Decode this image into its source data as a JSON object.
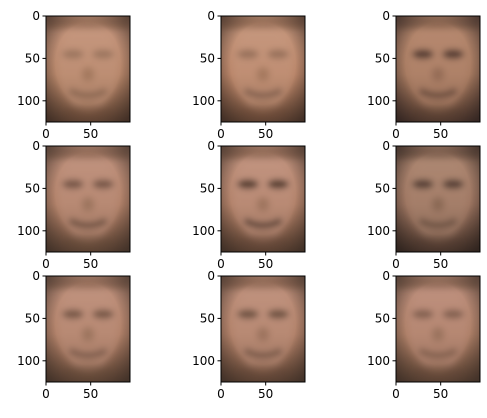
{
  "chart_data": [
    {
      "type": "heatmap",
      "title": "",
      "xlabel": "",
      "ylabel": "",
      "xlim": [
        0,
        94
      ],
      "ylim": [
        125,
        0
      ],
      "xticks": [
        0,
        50
      ],
      "yticks": [
        0,
        50,
        100
      ],
      "grid": false,
      "face": {
        "skin": "#b48468",
        "shade": "#7a5640",
        "eye": "#5c4234",
        "border": "#3a2a22",
        "highlight": "#c89880",
        "eye_strength": 0.35,
        "mouth_strength": 0.45,
        "brightness": 1.0
      }
    },
    {
      "type": "heatmap",
      "title": "",
      "xlabel": "",
      "ylabel": "",
      "xlim": [
        0,
        94
      ],
      "ylim": [
        125,
        0
      ],
      "xticks": [
        0,
        50
      ],
      "yticks": [
        0,
        50,
        100
      ],
      "grid": false,
      "face": {
        "skin": "#b88468",
        "shade": "#7c5640",
        "eye": "#5a4034",
        "border": "#3a2a22",
        "highlight": "#c89a80",
        "eye_strength": 0.4,
        "mouth_strength": 0.55,
        "brightness": 1.02
      }
    },
    {
      "type": "heatmap",
      "title": "",
      "xlabel": "",
      "ylabel": "",
      "xlim": [
        0,
        94
      ],
      "ylim": [
        125,
        0
      ],
      "xticks": [
        0,
        50
      ],
      "yticks": [
        0,
        50,
        100
      ],
      "grid": false,
      "face": {
        "skin": "#a67a60",
        "shade": "#6a4a38",
        "eye": "#3e2c24",
        "border": "#2e2220",
        "highlight": "#b88a70",
        "eye_strength": 0.8,
        "mouth_strength": 0.6,
        "brightness": 0.92
      }
    },
    {
      "type": "heatmap",
      "title": "",
      "xlabel": "",
      "ylabel": "",
      "xlim": [
        0,
        94
      ],
      "ylim": [
        125,
        0
      ],
      "xticks": [
        0,
        50
      ],
      "yticks": [
        0,
        50,
        100
      ],
      "grid": false,
      "face": {
        "skin": "#b08068",
        "shade": "#74523e",
        "eye": "#4a3428",
        "border": "#3c2e26",
        "highlight": "#c29480",
        "eye_strength": 0.6,
        "mouth_strength": 0.65,
        "brightness": 0.98
      }
    },
    {
      "type": "heatmap",
      "title": "",
      "xlabel": "",
      "ylabel": "",
      "xlim": [
        0,
        94
      ],
      "ylim": [
        125,
        0
      ],
      "xticks": [
        0,
        50
      ],
      "yticks": [
        0,
        50,
        100
      ],
      "grid": false,
      "face": {
        "skin": "#b08068",
        "shade": "#72503c",
        "eye": "#3e2c22",
        "border": "#3a2c24",
        "highlight": "#c49682",
        "eye_strength": 0.8,
        "mouth_strength": 0.75,
        "brightness": 0.98
      }
    },
    {
      "type": "heatmap",
      "title": "",
      "xlabel": "",
      "ylabel": "",
      "xlim": [
        0,
        94
      ],
      "ylim": [
        125,
        0
      ],
      "xticks": [
        0,
        50
      ],
      "yticks": [
        0,
        50,
        100
      ],
      "grid": false,
      "face": {
        "skin": "#9c7460",
        "shade": "#5e4436",
        "eye": "#3a2a22",
        "border": "#2a201c",
        "highlight": "#b08a74",
        "eye_strength": 0.75,
        "mouth_strength": 0.5,
        "brightness": 0.88
      }
    },
    {
      "type": "heatmap",
      "title": "",
      "xlabel": "",
      "ylabel": "",
      "xlim": [
        0,
        94
      ],
      "ylim": [
        125,
        0
      ],
      "xticks": [
        0,
        50
      ],
      "yticks": [
        0,
        50,
        100
      ],
      "grid": false,
      "face": {
        "skin": "#b08068",
        "shade": "#74523e",
        "eye": "#4c3628",
        "border": "#3c2e26",
        "highlight": "#c29480",
        "eye_strength": 0.6,
        "mouth_strength": 0.5,
        "brightness": 0.98
      }
    },
    {
      "type": "heatmap",
      "title": "",
      "xlabel": "",
      "ylabel": "",
      "xlim": [
        0,
        94
      ],
      "ylim": [
        125,
        0
      ],
      "xticks": [
        0,
        50
      ],
      "yticks": [
        0,
        50,
        100
      ],
      "grid": false,
      "face": {
        "skin": "#b08068",
        "shade": "#72503c",
        "eye": "#4a3428",
        "border": "#3c2e26",
        "highlight": "#c29480",
        "eye_strength": 0.65,
        "mouth_strength": 0.55,
        "brightness": 0.98
      }
    },
    {
      "type": "heatmap",
      "title": "",
      "xlabel": "",
      "ylabel": "",
      "xlim": [
        0,
        94
      ],
      "ylim": [
        125,
        0
      ],
      "xticks": [
        0,
        50
      ],
      "yticks": [
        0,
        50,
        100
      ],
      "grid": false,
      "face": {
        "skin": "#ac7e66",
        "shade": "#70503c",
        "eye": "#4e3828",
        "border": "#3c2e26",
        "highlight": "#c09280",
        "eye_strength": 0.5,
        "mouth_strength": 0.45,
        "brightness": 0.96
      }
    }
  ]
}
